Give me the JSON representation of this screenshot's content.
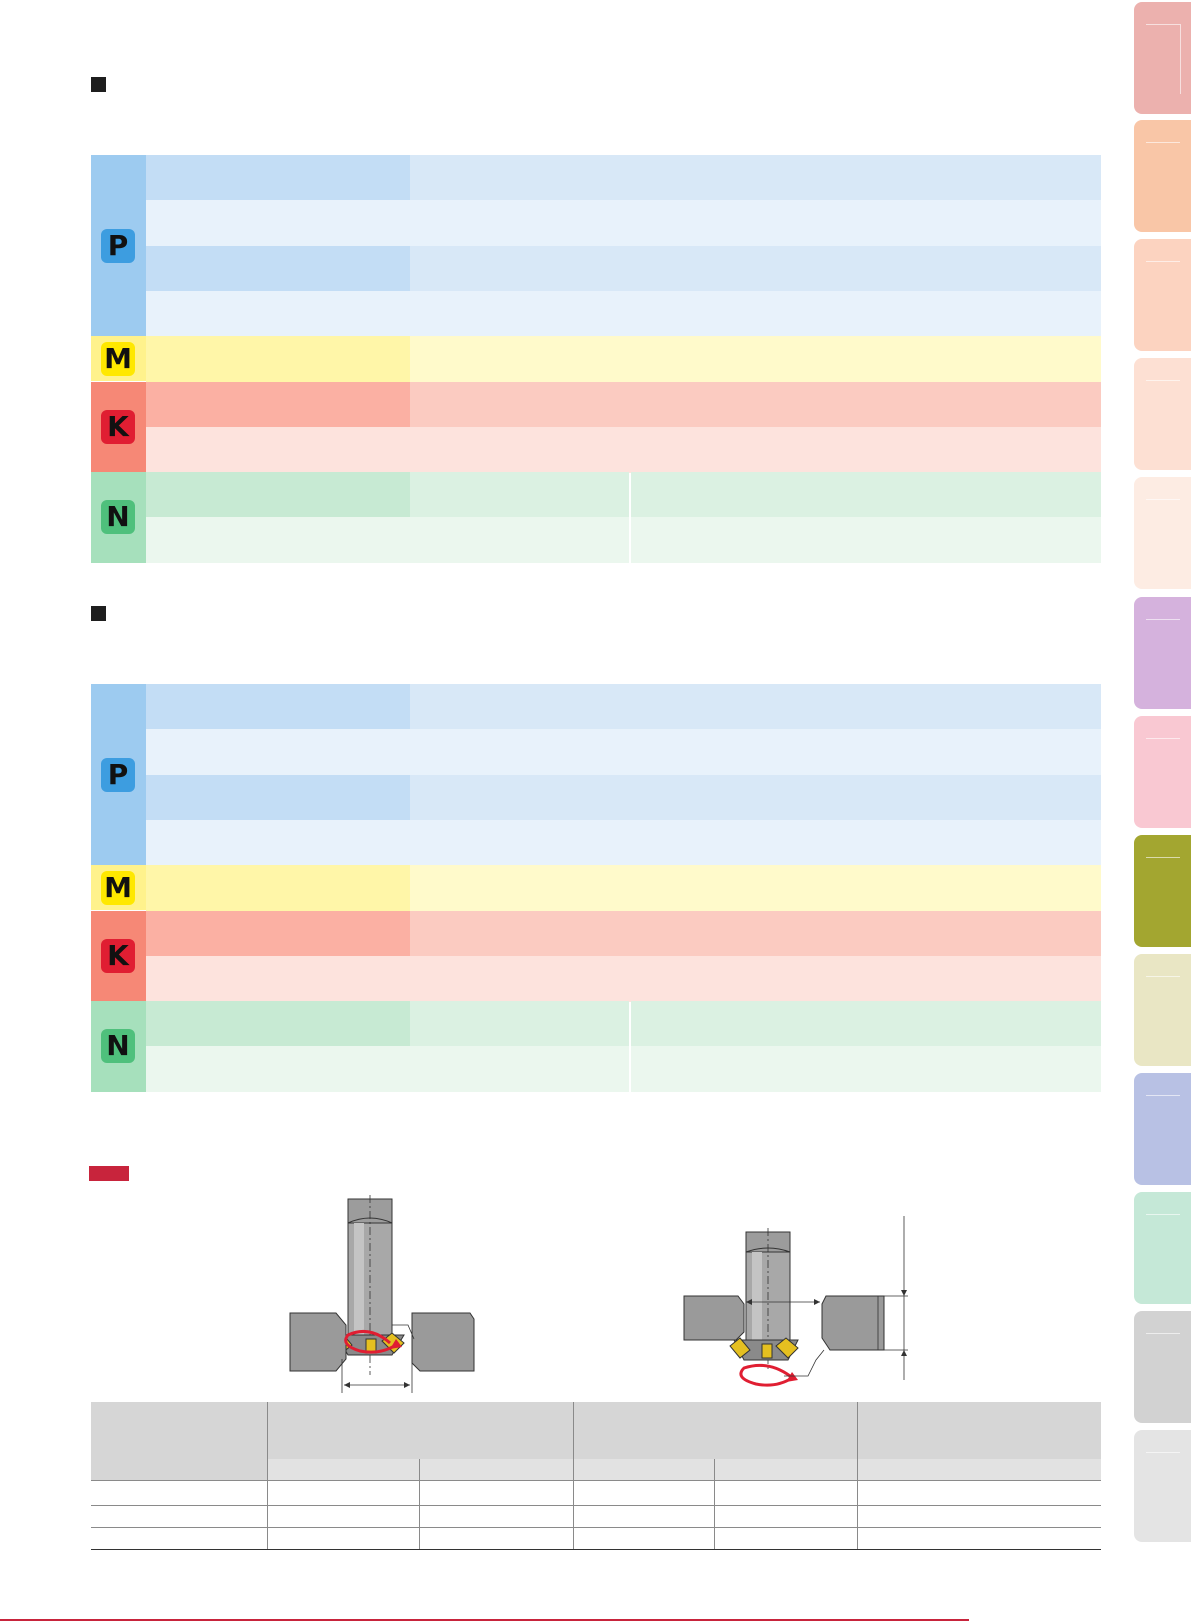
{
  "sections": [
    {
      "name": "section-1"
    },
    {
      "name": "section-2"
    }
  ],
  "materials": {
    "P": {
      "letter": "P",
      "badge_color": "#3d9de0",
      "text_color": "#111111"
    },
    "M": {
      "letter": "M",
      "badge_color": "#ffe800",
      "text_color": "#111111"
    },
    "K": {
      "letter": "K",
      "badge_color": "#e01e32",
      "text_color": "#111111"
    },
    "N": {
      "letter": "N",
      "badge_color": "#4fc07c",
      "text_color": "#111111"
    }
  },
  "colors": {
    "P_side": "#9dcbf0",
    "P_dark": "#c3ddf5",
    "P_mid": "#d8e8f7",
    "P_light": "#e8f2fb",
    "M_side": "#fff28c",
    "M_dark": "#fff6a8",
    "M_light": "#fffacb",
    "K_side": "#f68876",
    "K_dark": "#fbb0a3",
    "K_mid": "#fbcbc1",
    "K_light": "#fde3dd",
    "N_side": "#a6e0bc",
    "N_dark": "#c7ead3",
    "N_mid": "#dbf1e2",
    "N_light": "#ebf7ee",
    "accent_red": "#c8243c",
    "side_tabs": [
      "#ecb1ae",
      "#f9c6a7",
      "#fcd3c0",
      "#fde0d3",
      "#fdece3",
      "#d5b2dd",
      "#f9c8d2",
      "#a3a630",
      "#e9e6c4",
      "#b8c1e4",
      "#c5e8d7",
      "#d2d2d2",
      "#e4e4e4"
    ]
  },
  "figure": {
    "left_diagram": "slot-milling-diagram",
    "right_diagram": "undercut-milling-diagram"
  }
}
